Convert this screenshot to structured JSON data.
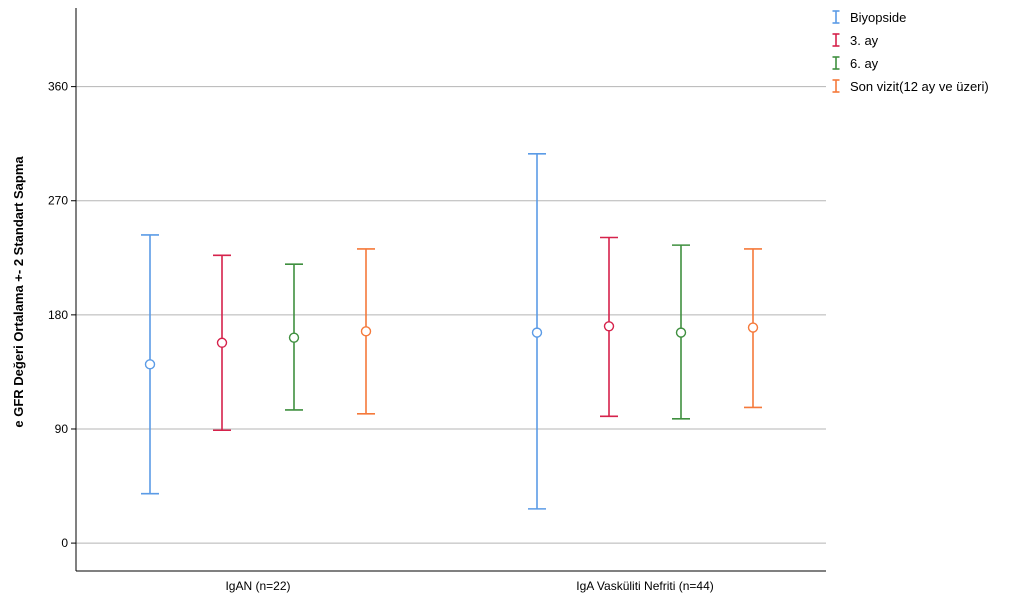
{
  "chart_data": {
    "type": "errorbar",
    "ylabel": "e GFR Değeri Ortalama +- 2 Standart Sapma",
    "xlabel": "",
    "ylim": [
      -22,
      422
    ],
    "yticks": [
      0,
      90,
      180,
      270,
      360
    ],
    "grid": true,
    "legend_position": "top-right",
    "categories": [
      "IgAN (n=22)",
      "IgA Vasküliti Nefriti (n=44)"
    ],
    "series": [
      {
        "name": "Biyopside",
        "color": "#5b9be6",
        "mean": [
          141,
          166
        ],
        "lower": [
          39,
          27
        ],
        "upper": [
          243,
          307
        ]
      },
      {
        "name": "3. ay",
        "color": "#d6224b",
        "mean": [
          158,
          171
        ],
        "lower": [
          89,
          100
        ],
        "upper": [
          227,
          241
        ]
      },
      {
        "name": "6. ay",
        "color": "#3f8f3f",
        "mean": [
          162,
          166
        ],
        "lower": [
          105,
          98
        ],
        "upper": [
          220,
          235
        ]
      },
      {
        "name": "Son vizit(12 ay ve üzeri)",
        "color": "#f5793a",
        "mean": [
          167,
          170
        ],
        "lower": [
          102,
          107
        ],
        "upper": [
          232,
          232
        ]
      }
    ]
  }
}
